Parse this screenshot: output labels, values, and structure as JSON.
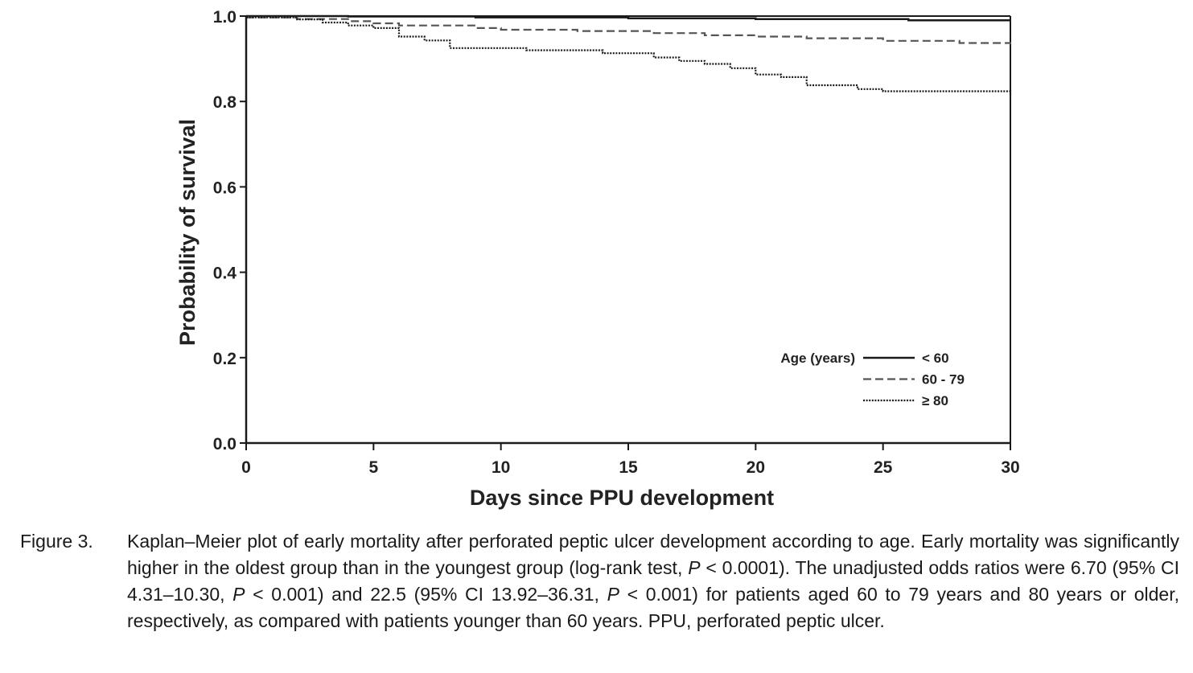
{
  "chart_data": {
    "type": "line",
    "subtype": "kaplan-meier step",
    "xlabel": "Days since PPU development",
    "ylabel": "Probability of survival",
    "xlim": [
      0,
      30
    ],
    "ylim": [
      0,
      1.0
    ],
    "x_ticks": [
      "0",
      "5",
      "10",
      "15",
      "20",
      "25",
      "30"
    ],
    "y_ticks": [
      "0.0",
      "0.2",
      "0.4",
      "0.6",
      "0.8",
      "1.0"
    ],
    "grid": false,
    "legend": {
      "title": "Age (years)",
      "placement": "bottom-right"
    },
    "series": [
      {
        "name": "< 60",
        "style": "solid",
        "color": "#1a1a1a",
        "points": [
          [
            0,
            1.0
          ],
          [
            4,
            0.999
          ],
          [
            9,
            0.997
          ],
          [
            15,
            0.995
          ],
          [
            20,
            0.993
          ],
          [
            26,
            0.99
          ],
          [
            30,
            0.99
          ]
        ]
      },
      {
        "name": "60 - 79",
        "style": "dashed",
        "color": "#555555",
        "points": [
          [
            0,
            0.997
          ],
          [
            2,
            0.993
          ],
          [
            4,
            0.988
          ],
          [
            5,
            0.983
          ],
          [
            6,
            0.978
          ],
          [
            9,
            0.972
          ],
          [
            10,
            0.968
          ],
          [
            13,
            0.965
          ],
          [
            16,
            0.96
          ],
          [
            18,
            0.955
          ],
          [
            20,
            0.952
          ],
          [
            22,
            0.948
          ],
          [
            25,
            0.942
          ],
          [
            28,
            0.937
          ],
          [
            30,
            0.934
          ]
        ]
      },
      {
        "name": "≥ 80",
        "style": "dotted",
        "color": "#1a1a1a",
        "points": [
          [
            0,
            0.997
          ],
          [
            2,
            0.992
          ],
          [
            3,
            0.985
          ],
          [
            4,
            0.978
          ],
          [
            5,
            0.972
          ],
          [
            6,
            0.952
          ],
          [
            7,
            0.943
          ],
          [
            8,
            0.925
          ],
          [
            11,
            0.92
          ],
          [
            14,
            0.913
          ],
          [
            16,
            0.903
          ],
          [
            17,
            0.895
          ],
          [
            18,
            0.888
          ],
          [
            19,
            0.878
          ],
          [
            20,
            0.863
          ],
          [
            21,
            0.857
          ],
          [
            22,
            0.838
          ],
          [
            24,
            0.829
          ],
          [
            25,
            0.824
          ],
          [
            30,
            0.822
          ],
          [
            30,
            0.815
          ]
        ]
      }
    ]
  },
  "caption": {
    "label": "Figure 3.",
    "text_parts": [
      {
        "t": "Kaplan–Meier plot of early mortality after perforated peptic ulcer development according to age. Early mortality was significantly higher in the oldest group than in the youngest group (log-rank test, "
      },
      {
        "t": "P",
        "italic": true
      },
      {
        "t": " < 0.0001). The unadjusted odds ratios were 6.70 (95% CI 4.31–10.30, "
      },
      {
        "t": "P",
        "italic": true
      },
      {
        "t": " < 0.001) and 22.5 (95% CI 13.92–36.31, "
      },
      {
        "t": "P",
        "italic": true
      },
      {
        "t": " < 0.001) for patients aged 60 to 79 years and 80 years or older, respectively, as compared with patients younger than 60 years. PPU, perforated peptic ulcer."
      }
    ]
  }
}
